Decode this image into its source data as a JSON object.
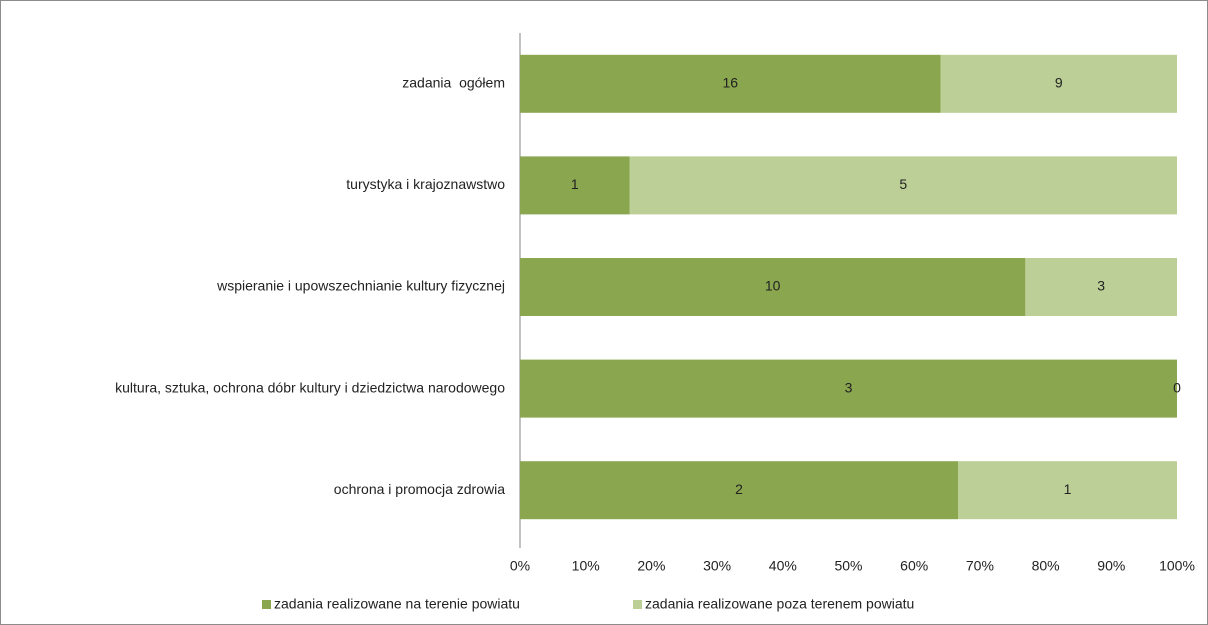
{
  "chart_data": {
    "type": "bar",
    "orientation": "horizontal",
    "stacking": "percent",
    "categories": [
      "zadania  ogółem",
      "turystyka i krajoznawstwo",
      "wspieranie i upowszechnianie kultury fizycznej",
      "kultura, sztuka, ochrona dóbr kultury i dziedzictwa narodowego",
      "ochrona i promocja zdrowia"
    ],
    "series": [
      {
        "name": "zadania realizowane na terenie powiatu",
        "color": "#8aa64f",
        "values": [
          16,
          1,
          10,
          3,
          2
        ]
      },
      {
        "name": "zadania realizowane poza terenem powiatu",
        "color": "#bccf96",
        "values": [
          9,
          5,
          3,
          0,
          1
        ]
      }
    ],
    "xlim": [
      0,
      100
    ],
    "xticks": [
      {
        "value": 0,
        "label": "0%"
      },
      {
        "value": 10,
        "label": "10%"
      },
      {
        "value": 20,
        "label": "20%"
      },
      {
        "value": 30,
        "label": "30%"
      },
      {
        "value": 40,
        "label": "40%"
      },
      {
        "value": 50,
        "label": "50%"
      },
      {
        "value": 60,
        "label": "60%"
      },
      {
        "value": 70,
        "label": "70%"
      },
      {
        "value": 80,
        "label": "80%"
      },
      {
        "value": 90,
        "label": "90%"
      },
      {
        "value": 100,
        "label": "100%"
      }
    ],
    "legend": "bottom"
  }
}
